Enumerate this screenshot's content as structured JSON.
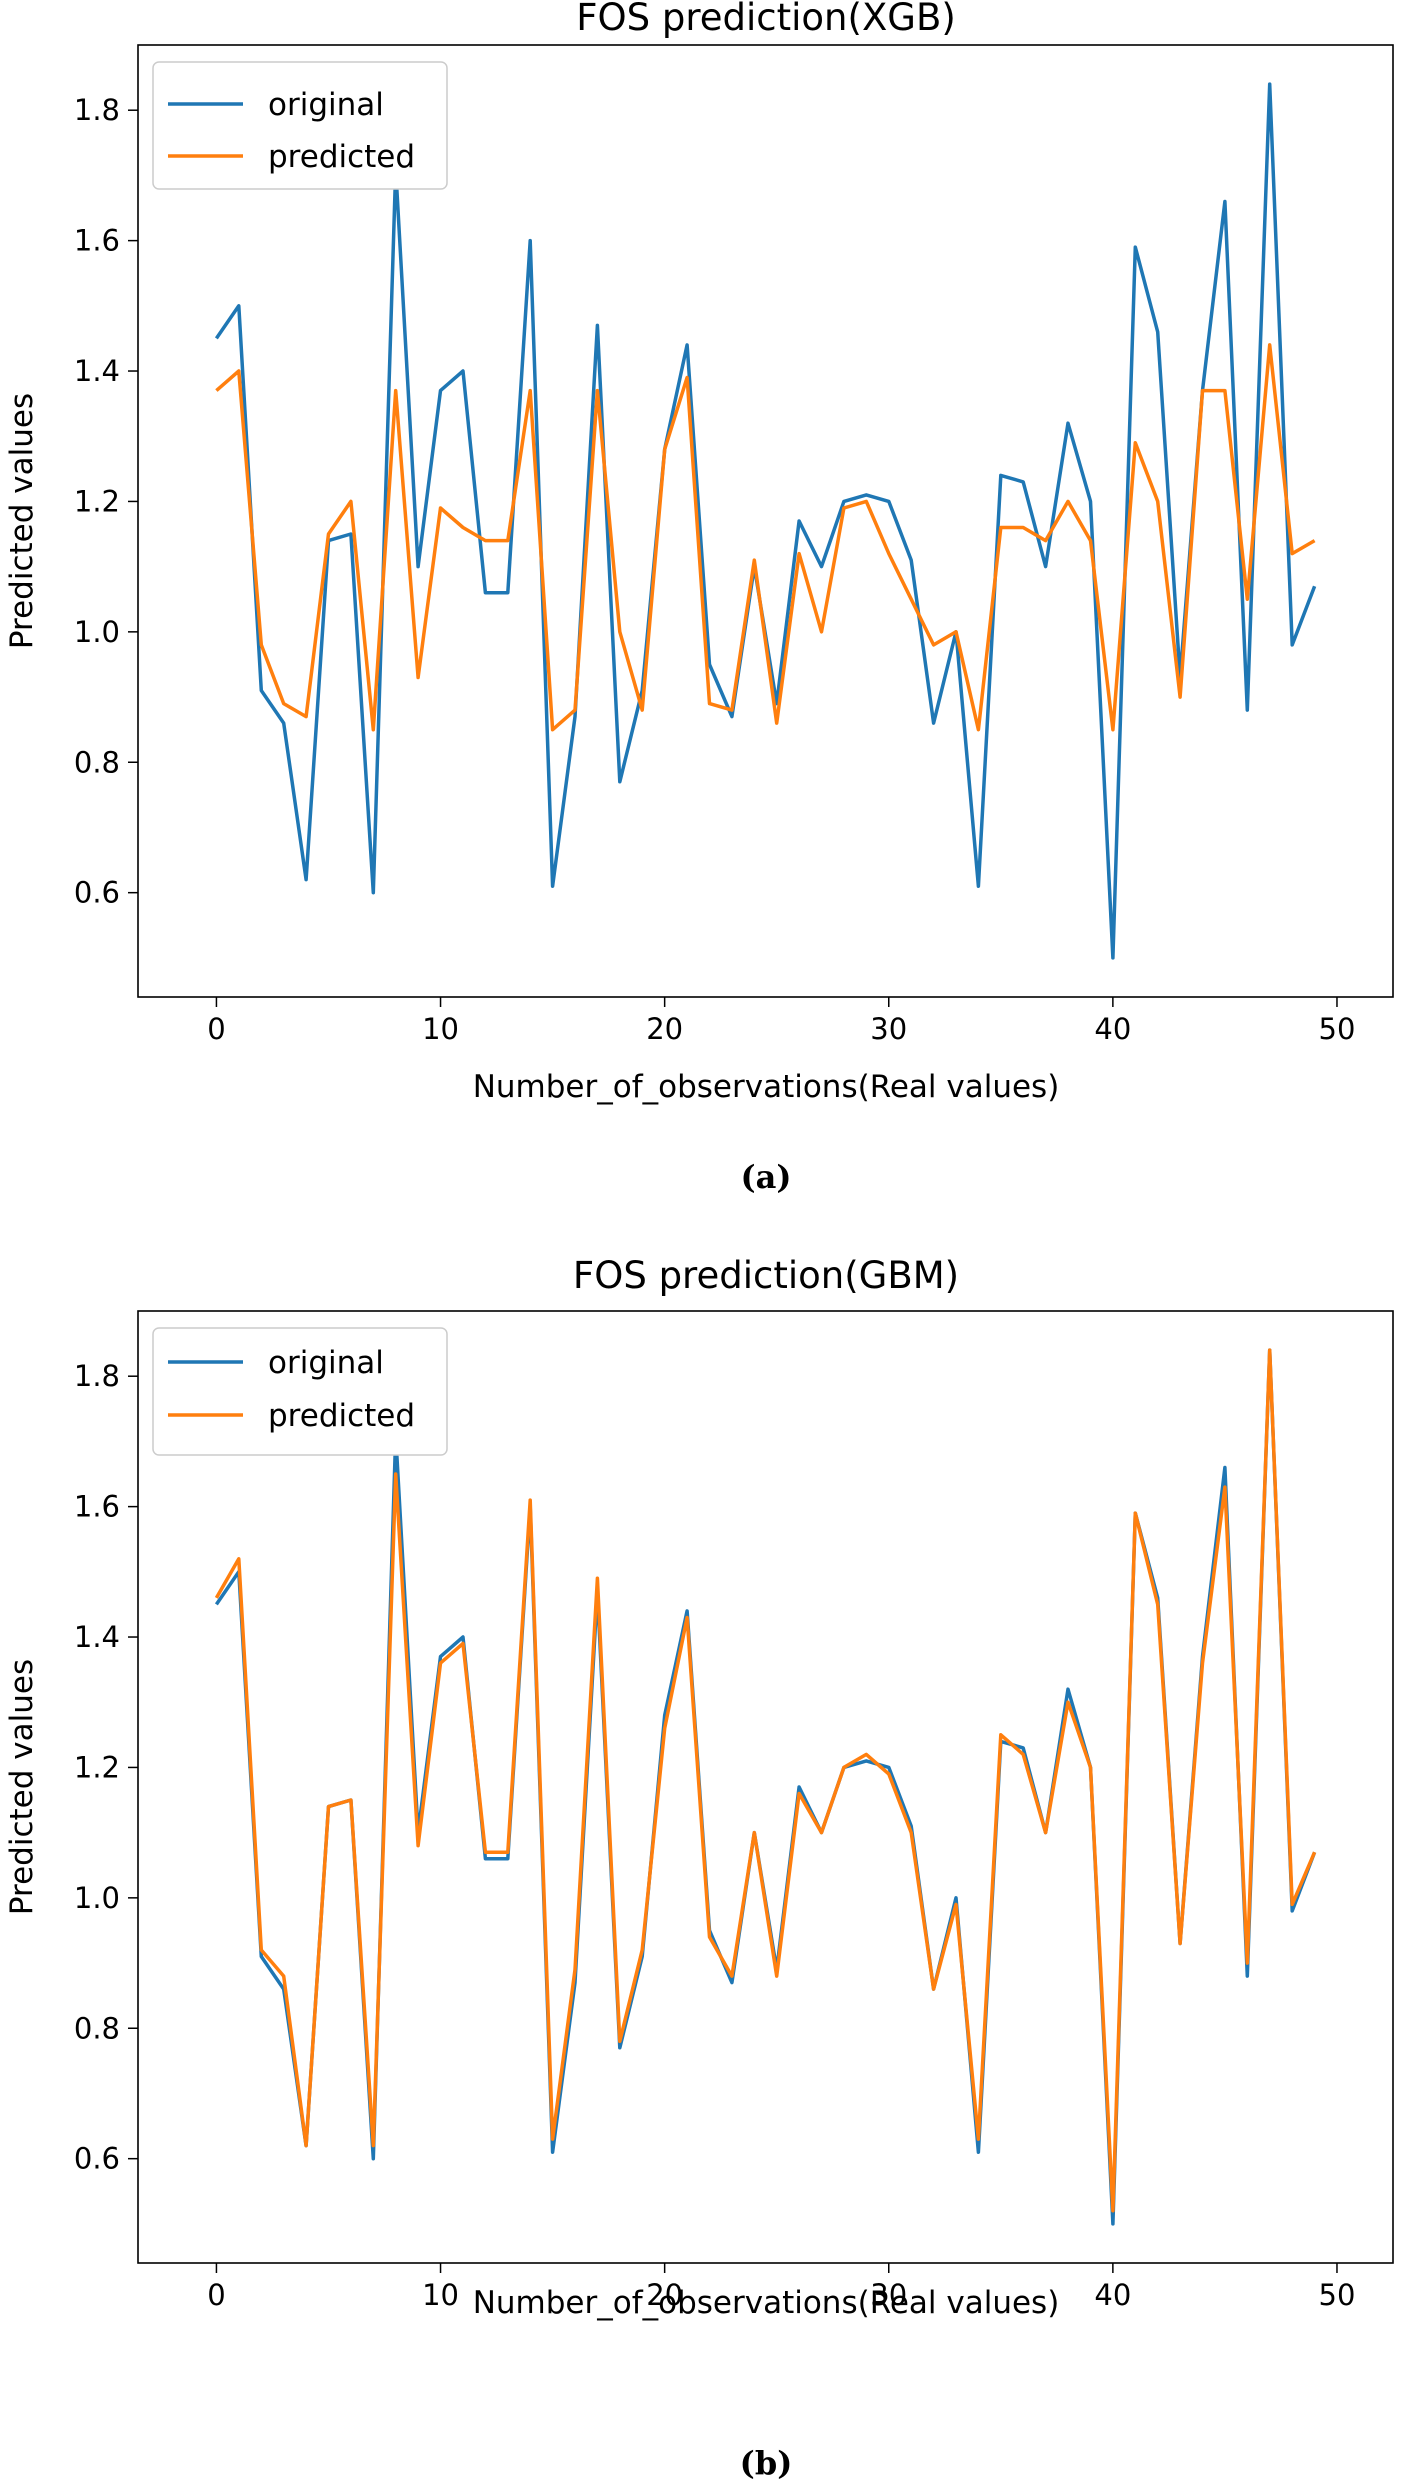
{
  "chart_data": [
    {
      "type": "line",
      "title": "FOS prediction(XGB)",
      "xlabel": "Number_of_observations(Real values)",
      "ylabel": "Predicted values",
      "caption": "(a)",
      "xlim": [
        -3.5,
        52.5
      ],
      "ylim": [
        0.44,
        1.9
      ],
      "xticks": [
        0,
        10,
        20,
        30,
        40,
        50
      ],
      "yticks": [
        0.6,
        0.8,
        1.0,
        1.2,
        1.4,
        1.6,
        1.8
      ],
      "legend_position": "upper-left",
      "grid": false,
      "x": [
        0,
        1,
        2,
        3,
        4,
        5,
        6,
        7,
        8,
        9,
        10,
        11,
        12,
        13,
        14,
        15,
        16,
        17,
        18,
        19,
        20,
        21,
        22,
        23,
        24,
        25,
        26,
        27,
        28,
        29,
        30,
        31,
        32,
        33,
        34,
        35,
        36,
        37,
        38,
        39,
        40,
        41,
        42,
        43,
        44,
        45,
        46,
        47,
        48,
        49
      ],
      "series": [
        {
          "name": "original",
          "color": "#1f77b4",
          "values": [
            1.45,
            1.5,
            0.91,
            0.86,
            0.62,
            1.14,
            1.15,
            0.6,
            1.71,
            1.1,
            1.37,
            1.4,
            1.06,
            1.06,
            1.6,
            0.61,
            0.87,
            1.47,
            0.77,
            0.91,
            1.28,
            1.44,
            0.95,
            0.87,
            1.1,
            0.89,
            1.17,
            1.1,
            1.2,
            1.21,
            1.2,
            1.11,
            0.86,
            1.0,
            0.61,
            1.24,
            1.23,
            1.1,
            1.32,
            1.2,
            0.5,
            1.59,
            1.46,
            0.93,
            1.37,
            1.66,
            0.88,
            1.84,
            0.98,
            1.07
          ]
        },
        {
          "name": "predicted",
          "color": "#ff7f0e",
          "values": [
            1.37,
            1.4,
            0.98,
            0.89,
            0.87,
            1.15,
            1.2,
            0.85,
            1.37,
            0.93,
            1.19,
            1.16,
            1.14,
            1.14,
            1.37,
            0.85,
            0.88,
            1.37,
            1.0,
            0.88,
            1.28,
            1.39,
            0.89,
            0.88,
            1.11,
            0.86,
            1.12,
            1.0,
            1.19,
            1.2,
            1.12,
            1.05,
            0.98,
            1.0,
            0.85,
            1.16,
            1.16,
            1.14,
            1.2,
            1.14,
            0.85,
            1.29,
            1.2,
            0.9,
            1.37,
            1.37,
            1.05,
            1.44,
            1.12,
            1.14
          ]
        }
      ]
    },
    {
      "type": "line",
      "title": "FOS prediction(GBM)",
      "xlabel": "Number_of_observations(Real values)",
      "ylabel": "Predicted values",
      "caption": "(b)",
      "xlim": [
        -3.5,
        52.5
      ],
      "ylim": [
        0.44,
        1.9
      ],
      "xticks": [
        0,
        10,
        20,
        30,
        40,
        50
      ],
      "yticks": [
        0.6,
        0.8,
        1.0,
        1.2,
        1.4,
        1.6,
        1.8
      ],
      "legend_position": "upper-left",
      "grid": false,
      "x": [
        0,
        1,
        2,
        3,
        4,
        5,
        6,
        7,
        8,
        9,
        10,
        11,
        12,
        13,
        14,
        15,
        16,
        17,
        18,
        19,
        20,
        21,
        22,
        23,
        24,
        25,
        26,
        27,
        28,
        29,
        30,
        31,
        32,
        33,
        34,
        35,
        36,
        37,
        38,
        39,
        40,
        41,
        42,
        43,
        44,
        45,
        46,
        47,
        48,
        49
      ],
      "series": [
        {
          "name": "original",
          "color": "#1f77b4",
          "values": [
            1.45,
            1.5,
            0.91,
            0.86,
            0.62,
            1.14,
            1.15,
            0.6,
            1.71,
            1.1,
            1.37,
            1.4,
            1.06,
            1.06,
            1.6,
            0.61,
            0.87,
            1.47,
            0.77,
            0.91,
            1.28,
            1.44,
            0.95,
            0.87,
            1.1,
            0.89,
            1.17,
            1.1,
            1.2,
            1.21,
            1.2,
            1.11,
            0.86,
            1.0,
            0.61,
            1.24,
            1.23,
            1.1,
            1.32,
            1.2,
            0.5,
            1.59,
            1.46,
            0.93,
            1.37,
            1.66,
            0.88,
            1.84,
            0.98,
            1.07
          ]
        },
        {
          "name": "predicted",
          "color": "#ff7f0e",
          "values": [
            1.46,
            1.52,
            0.92,
            0.88,
            0.62,
            1.14,
            1.15,
            0.62,
            1.65,
            1.08,
            1.36,
            1.39,
            1.07,
            1.07,
            1.61,
            0.63,
            0.89,
            1.49,
            0.78,
            0.92,
            1.26,
            1.43,
            0.94,
            0.88,
            1.1,
            0.88,
            1.16,
            1.1,
            1.2,
            1.22,
            1.19,
            1.1,
            0.86,
            0.99,
            0.63,
            1.25,
            1.22,
            1.1,
            1.3,
            1.2,
            0.52,
            1.59,
            1.45,
            0.93,
            1.36,
            1.63,
            0.9,
            1.84,
            0.99,
            1.07
          ]
        }
      ]
    }
  ]
}
